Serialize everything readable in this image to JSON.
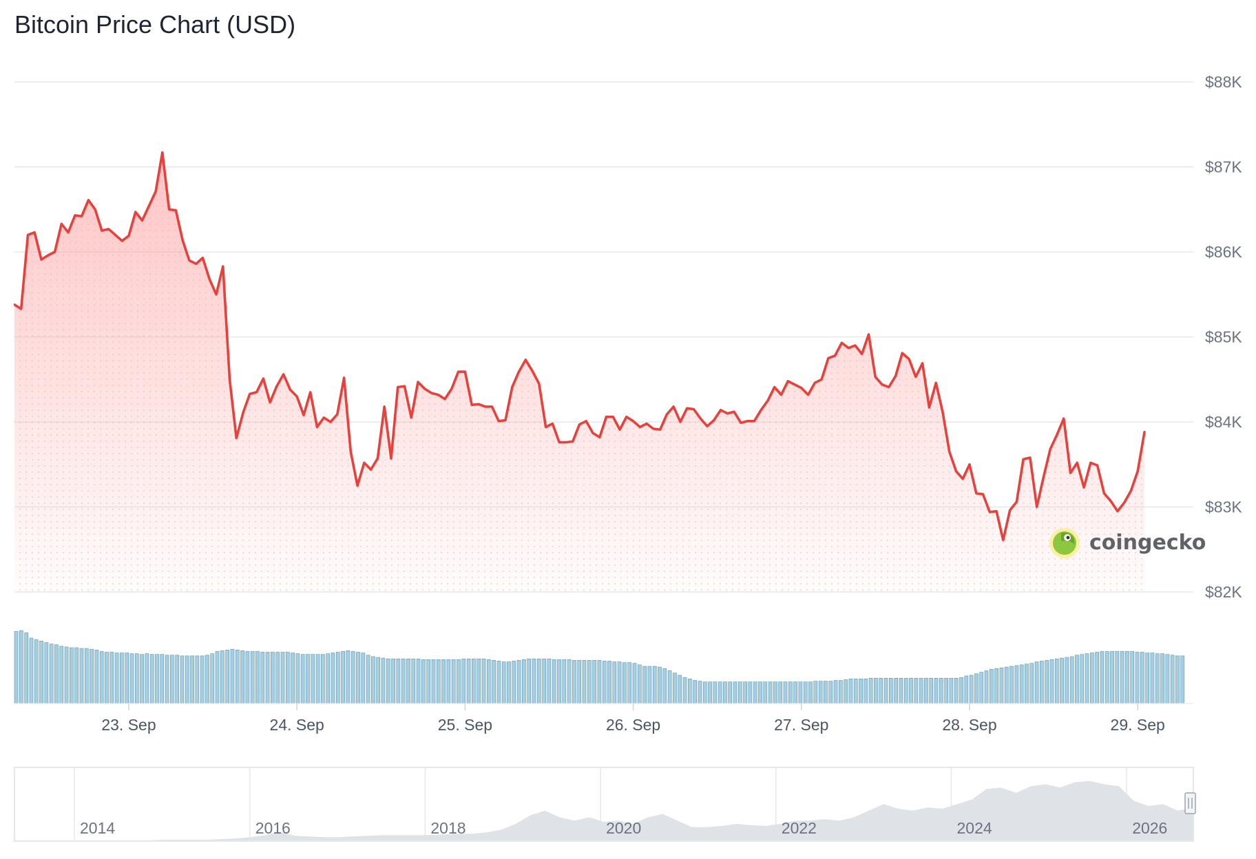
{
  "page": {
    "title": "Bitcoin Price Chart (USD)"
  },
  "colors": {
    "price_line": "#e8403b",
    "area_fill_top": "#fca5a5",
    "volume_bar": "#a7cde0",
    "volume_bar_edge": "#5b9ab9",
    "gridline": "#e5e7eb",
    "navigator_area": "#dfe3e8",
    "navigator_border": "#e5e7eb",
    "watermark_green": "#8dc63f",
    "watermark_yellow": "#fcef9f"
  },
  "watermark": {
    "text": "coingecko",
    "icon": "coingecko-logo-icon"
  },
  "navigator": {
    "year_labels": [
      "2014",
      "2016",
      "2018",
      "2020",
      "2022",
      "2024",
      "2026"
    ],
    "handle_icon": "drag-handle-icon",
    "history_shape": [
      0,
      0,
      0,
      0,
      0,
      0,
      0,
      0,
      0,
      0,
      0.01,
      0.01,
      0.01,
      0.01,
      0.02,
      0.03,
      0.05,
      0.08,
      0.13,
      0.07,
      0.06,
      0.05,
      0.05,
      0.06,
      0.07,
      0.08,
      0.08,
      0.08,
      0.08,
      0.09,
      0.1,
      0.1,
      0.12,
      0.16,
      0.25,
      0.38,
      0.45,
      0.35,
      0.3,
      0.35,
      0.28,
      0.3,
      0.25,
      0.35,
      0.4,
      0.3,
      0.2,
      0.2,
      0.22,
      0.25,
      0.23,
      0.22,
      0.25,
      0.3,
      0.3,
      0.32,
      0.3,
      0.35,
      0.45,
      0.55,
      0.48,
      0.45,
      0.5,
      0.48,
      0.55,
      0.62,
      0.78,
      0.8,
      0.72,
      0.82,
      0.85,
      0.8,
      0.88,
      0.9,
      0.85,
      0.82,
      0.6,
      0.52,
      0.55,
      0.45,
      0.5
    ]
  },
  "chart_data": {
    "type": "line",
    "title": "Bitcoin Price Chart (USD)",
    "currency": "USD",
    "x_tick_labels": [
      "23. Sep",
      "24. Sep",
      "25. Sep",
      "26. Sep",
      "27. Sep",
      "28. Sep",
      "29. Sep"
    ],
    "x_range_days": [
      -0.68,
      6.35
    ],
    "y_axis": {
      "min": 82000,
      "max": 88000,
      "ticks": [
        88000,
        87000,
        86000,
        85000,
        84000,
        83000,
        82000
      ],
      "tick_labels": [
        "$88K",
        "$87K",
        "$86K",
        "$85K",
        "$84K",
        "$83K",
        "$82K"
      ],
      "position": "right",
      "grid": true
    },
    "legend": "none",
    "series": [
      {
        "points": [
          [
            -0.68,
            85380
          ],
          [
            -0.64,
            85330
          ],
          [
            -0.6,
            86200
          ],
          [
            -0.56,
            86230
          ],
          [
            -0.52,
            85910
          ],
          [
            -0.48,
            85960
          ],
          [
            -0.44,
            86000
          ],
          [
            -0.4,
            86330
          ],
          [
            -0.36,
            86230
          ],
          [
            -0.32,
            86430
          ],
          [
            -0.28,
            86420
          ],
          [
            -0.24,
            86610
          ],
          [
            -0.2,
            86500
          ],
          [
            -0.16,
            86250
          ],
          [
            -0.12,
            86270
          ],
          [
            -0.08,
            86200
          ],
          [
            -0.04,
            86130
          ],
          [
            0.0,
            86190
          ],
          [
            0.04,
            86470
          ],
          [
            0.08,
            86370
          ],
          [
            0.12,
            86540
          ],
          [
            0.16,
            86710
          ],
          [
            0.2,
            87170
          ],
          [
            0.24,
            86500
          ],
          [
            0.28,
            86490
          ],
          [
            0.32,
            86140
          ],
          [
            0.36,
            85900
          ],
          [
            0.4,
            85860
          ],
          [
            0.44,
            85930
          ],
          [
            0.48,
            85680
          ],
          [
            0.52,
            85500
          ],
          [
            0.56,
            85830
          ],
          [
            0.6,
            84500
          ],
          [
            0.64,
            83810
          ],
          [
            0.68,
            84110
          ],
          [
            0.72,
            84330
          ],
          [
            0.76,
            84350
          ],
          [
            0.8,
            84510
          ],
          [
            0.84,
            84230
          ],
          [
            0.88,
            84420
          ],
          [
            0.92,
            84560
          ],
          [
            0.96,
            84380
          ],
          [
            1.0,
            84300
          ],
          [
            1.04,
            84080
          ],
          [
            1.08,
            84350
          ],
          [
            1.12,
            83940
          ],
          [
            1.16,
            84050
          ],
          [
            1.2,
            84000
          ],
          [
            1.24,
            84090
          ],
          [
            1.28,
            84520
          ],
          [
            1.32,
            83650
          ],
          [
            1.36,
            83250
          ],
          [
            1.4,
            83520
          ],
          [
            1.44,
            83440
          ],
          [
            1.48,
            83570
          ],
          [
            1.52,
            84180
          ],
          [
            1.56,
            83570
          ],
          [
            1.6,
            84410
          ],
          [
            1.64,
            84420
          ],
          [
            1.68,
            84050
          ],
          [
            1.72,
            84470
          ],
          [
            1.76,
            84390
          ],
          [
            1.8,
            84340
          ],
          [
            1.84,
            84320
          ],
          [
            1.88,
            84270
          ],
          [
            1.92,
            84390
          ],
          [
            1.96,
            84590
          ],
          [
            2.0,
            84590
          ],
          [
            2.04,
            84200
          ],
          [
            2.08,
            84210
          ],
          [
            2.12,
            84180
          ],
          [
            2.16,
            84180
          ],
          [
            2.2,
            84010
          ],
          [
            2.24,
            84020
          ],
          [
            2.28,
            84410
          ],
          [
            2.32,
            84590
          ],
          [
            2.36,
            84730
          ],
          [
            2.4,
            84600
          ],
          [
            2.44,
            84450
          ],
          [
            2.48,
            83940
          ],
          [
            2.52,
            83980
          ],
          [
            2.56,
            83760
          ],
          [
            2.6,
            83760
          ],
          [
            2.64,
            83770
          ],
          [
            2.68,
            83970
          ],
          [
            2.72,
            84010
          ],
          [
            2.76,
            83870
          ],
          [
            2.8,
            83820
          ],
          [
            2.84,
            84060
          ],
          [
            2.88,
            84060
          ],
          [
            2.92,
            83910
          ],
          [
            2.96,
            84060
          ],
          [
            3.0,
            84010
          ],
          [
            3.04,
            83940
          ],
          [
            3.08,
            83980
          ],
          [
            3.12,
            83920
          ],
          [
            3.16,
            83910
          ],
          [
            3.2,
            84090
          ],
          [
            3.24,
            84180
          ],
          [
            3.28,
            84000
          ],
          [
            3.32,
            84160
          ],
          [
            3.36,
            84150
          ],
          [
            3.4,
            84040
          ],
          [
            3.44,
            83950
          ],
          [
            3.48,
            84020
          ],
          [
            3.52,
            84140
          ],
          [
            3.56,
            84100
          ],
          [
            3.6,
            84120
          ],
          [
            3.64,
            83990
          ],
          [
            3.68,
            84010
          ],
          [
            3.72,
            84010
          ],
          [
            3.76,
            84140
          ],
          [
            3.8,
            84250
          ],
          [
            3.84,
            84410
          ],
          [
            3.88,
            84320
          ],
          [
            3.92,
            84480
          ],
          [
            3.96,
            84440
          ],
          [
            4.0,
            84400
          ],
          [
            4.04,
            84320
          ],
          [
            4.08,
            84460
          ],
          [
            4.12,
            84500
          ],
          [
            4.16,
            84750
          ],
          [
            4.2,
            84780
          ],
          [
            4.24,
            84930
          ],
          [
            4.28,
            84870
          ],
          [
            4.32,
            84900
          ],
          [
            4.36,
            84800
          ],
          [
            4.4,
            85030
          ],
          [
            4.44,
            84530
          ],
          [
            4.48,
            84440
          ],
          [
            4.52,
            84410
          ],
          [
            4.56,
            84540
          ],
          [
            4.6,
            84810
          ],
          [
            4.64,
            84740
          ],
          [
            4.68,
            84530
          ],
          [
            4.72,
            84690
          ],
          [
            4.76,
            84170
          ],
          [
            4.8,
            84460
          ],
          [
            4.84,
            84120
          ],
          [
            4.88,
            83650
          ],
          [
            4.92,
            83420
          ],
          [
            4.96,
            83330
          ],
          [
            5.0,
            83500
          ],
          [
            5.04,
            83160
          ],
          [
            5.08,
            83150
          ],
          [
            5.12,
            82940
          ],
          [
            5.16,
            82950
          ],
          [
            5.2,
            82610
          ],
          [
            5.24,
            82960
          ],
          [
            5.28,
            83060
          ],
          [
            5.32,
            83560
          ],
          [
            5.36,
            83580
          ],
          [
            5.4,
            83000
          ],
          [
            5.44,
            83350
          ],
          [
            5.48,
            83680
          ],
          [
            5.52,
            83850
          ],
          [
            5.56,
            84040
          ],
          [
            5.6,
            83400
          ],
          [
            5.64,
            83520
          ],
          [
            5.68,
            83230
          ],
          [
            5.72,
            83520
          ],
          [
            5.76,
            83490
          ],
          [
            5.8,
            83160
          ],
          [
            5.84,
            83070
          ],
          [
            5.88,
            82950
          ],
          [
            5.92,
            83050
          ],
          [
            5.96,
            83190
          ],
          [
            6.0,
            83420
          ],
          [
            6.04,
            83880
          ]
        ]
      }
    ],
    "volume": {
      "name": "Volume",
      "relative_values": [
        0.97,
        0.98,
        0.95,
        0.88,
        0.86,
        0.84,
        0.82,
        0.8,
        0.79,
        0.77,
        0.76,
        0.75,
        0.75,
        0.74,
        0.74,
        0.73,
        0.72,
        0.7,
        0.69,
        0.69,
        0.68,
        0.68,
        0.68,
        0.67,
        0.67,
        0.66,
        0.67,
        0.66,
        0.66,
        0.66,
        0.65,
        0.65,
        0.65,
        0.64,
        0.64,
        0.64,
        0.64,
        0.64,
        0.65,
        0.67,
        0.7,
        0.71,
        0.72,
        0.73,
        0.72,
        0.71,
        0.7,
        0.7,
        0.7,
        0.69,
        0.69,
        0.69,
        0.69,
        0.69,
        0.69,
        0.68,
        0.67,
        0.66,
        0.66,
        0.66,
        0.66,
        0.66,
        0.67,
        0.68,
        0.69,
        0.7,
        0.71,
        0.7,
        0.69,
        0.68,
        0.65,
        0.63,
        0.62,
        0.61,
        0.6,
        0.6,
        0.6,
        0.6,
        0.6,
        0.6,
        0.6,
        0.59,
        0.59,
        0.59,
        0.59,
        0.59,
        0.59,
        0.59,
        0.59,
        0.6,
        0.6,
        0.6,
        0.6,
        0.6,
        0.59,
        0.58,
        0.57,
        0.56,
        0.56,
        0.57,
        0.58,
        0.59,
        0.6,
        0.6,
        0.6,
        0.6,
        0.6,
        0.59,
        0.59,
        0.59,
        0.59,
        0.58,
        0.58,
        0.58,
        0.58,
        0.58,
        0.58,
        0.57,
        0.57,
        0.56,
        0.56,
        0.55,
        0.55,
        0.54,
        0.52,
        0.5,
        0.5,
        0.5,
        0.49,
        0.47,
        0.44,
        0.41,
        0.38,
        0.35,
        0.33,
        0.31,
        0.3,
        0.29,
        0.29,
        0.29,
        0.29,
        0.29,
        0.29,
        0.29,
        0.29,
        0.29,
        0.29,
        0.29,
        0.29,
        0.29,
        0.29,
        0.29,
        0.29,
        0.29,
        0.29,
        0.29,
        0.29,
        0.29,
        0.29,
        0.3,
        0.3,
        0.3,
        0.3,
        0.31,
        0.31,
        0.32,
        0.33,
        0.33,
        0.33,
        0.33,
        0.34,
        0.34,
        0.34,
        0.34,
        0.34,
        0.34,
        0.34,
        0.34,
        0.34,
        0.34,
        0.34,
        0.34,
        0.34,
        0.34,
        0.34,
        0.34,
        0.34,
        0.34,
        0.35,
        0.37,
        0.38,
        0.4,
        0.42,
        0.44,
        0.46,
        0.47,
        0.48,
        0.49,
        0.5,
        0.51,
        0.52,
        0.53,
        0.54,
        0.56,
        0.57,
        0.58,
        0.59,
        0.6,
        0.61,
        0.62,
        0.63,
        0.65,
        0.66,
        0.67,
        0.68,
        0.69,
        0.7,
        0.7,
        0.7,
        0.7,
        0.7,
        0.7,
        0.7,
        0.69,
        0.69,
        0.68,
        0.68,
        0.67,
        0.67,
        0.66,
        0.65,
        0.64,
        0.64
      ]
    }
  }
}
